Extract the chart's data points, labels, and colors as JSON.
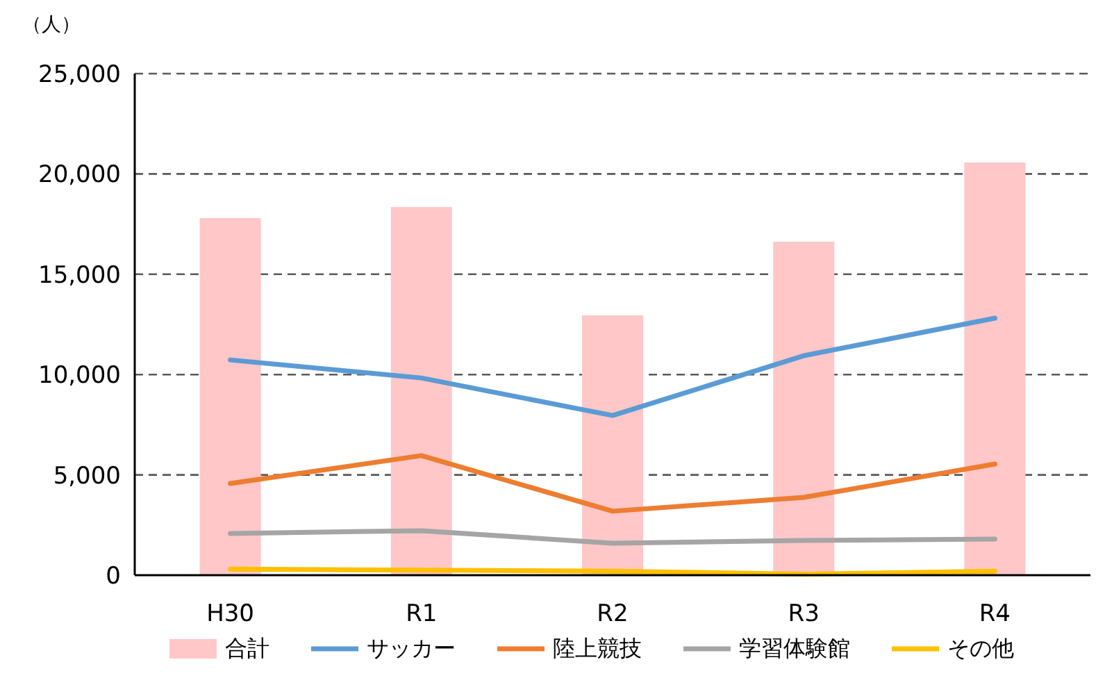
{
  "chart_data": {
    "type": "bar",
    "ylabel": "（人）",
    "categories": [
      "H30",
      "R1",
      "R2",
      "R3",
      "R4"
    ],
    "series": [
      {
        "name": "合計",
        "color": "#ffc7c7",
        "values": [
          17800,
          18350,
          12950,
          16620,
          20570
        ]
      },
      {
        "name": "サッカー",
        "type": "line",
        "color": "#5b9bd5",
        "values": [
          10730,
          9830,
          7960,
          10940,
          12810
        ]
      },
      {
        "name": "陸上競技",
        "type": "line",
        "color": "#ed7d31",
        "values": [
          4570,
          5960,
          3190,
          3880,
          5540
        ]
      },
      {
        "name": "学習体験館",
        "type": "line",
        "color": "#a5a5a5",
        "values": [
          2080,
          2220,
          1590,
          1730,
          1800
        ]
      },
      {
        "name": "その他",
        "type": "line",
        "color": "#ffc000",
        "values": [
          300,
          250,
          200,
          50,
          200
        ]
      }
    ],
    "ylim": [
      0,
      25000
    ],
    "yticks": [
      {
        "value": 0,
        "label": "0"
      },
      {
        "value": 5000,
        "label": "5,000"
      },
      {
        "value": 10000,
        "label": "10,000"
      },
      {
        "value": 15000,
        "label": "15,000"
      },
      {
        "value": 20000,
        "label": "20,000"
      },
      {
        "value": 25000,
        "label": "25,000"
      }
    ],
    "grid": "y",
    "legend": "bottom",
    "marker": "none",
    "line_style": "solid"
  }
}
